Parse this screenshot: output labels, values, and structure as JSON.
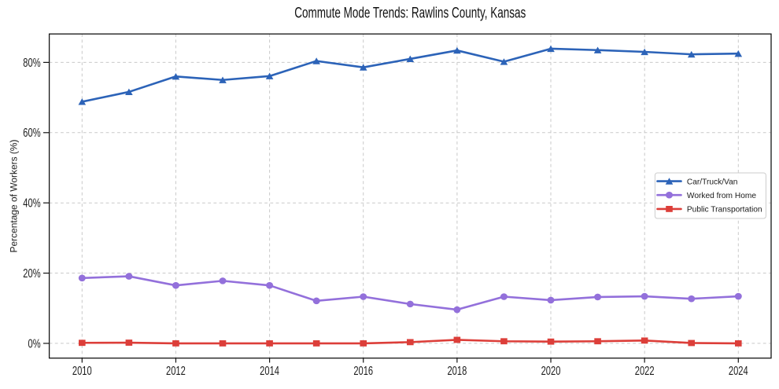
{
  "chart_data": {
    "type": "line",
    "title": "Commute Mode Trends: Rawlins County, Kansas",
    "ylabel": "Percentage of Workers (%)",
    "xlabel": "",
    "x": [
      2010,
      2011,
      2012,
      2013,
      2014,
      2015,
      2016,
      2017,
      2018,
      2019,
      2020,
      2021,
      2022,
      2023,
      2024
    ],
    "series": [
      {
        "name": "Car/Truck/Van",
        "color": "#2c63b8",
        "marker": "triangle",
        "values": [
          68.8,
          71.6,
          76.0,
          75.0,
          76.1,
          80.4,
          78.6,
          81.0,
          83.4,
          80.2,
          83.9,
          83.5,
          83.0,
          82.3,
          82.5
        ]
      },
      {
        "name": "Worked from Home",
        "color": "#9370db",
        "marker": "circle",
        "values": [
          18.6,
          19.1,
          16.5,
          17.8,
          16.5,
          12.1,
          13.3,
          11.2,
          9.6,
          13.3,
          12.3,
          13.2,
          13.4,
          12.7,
          13.4
        ]
      },
      {
        "name": "Public Transportation",
        "color": "#dc3e39",
        "marker": "square",
        "values": [
          0.15,
          0.2,
          0.0,
          0.0,
          0.0,
          0.0,
          0.0,
          0.35,
          1.0,
          0.6,
          0.5,
          0.6,
          0.8,
          0.1,
          0.0
        ]
      }
    ],
    "xticks": {
      "values": [
        2010,
        2012,
        2014,
        2016,
        2018,
        2020,
        2022,
        2024
      ],
      "labels": [
        "2010",
        "2012",
        "2014",
        "2016",
        "2018",
        "2020",
        "2022",
        "2024"
      ]
    },
    "yticks": {
      "values": [
        0,
        20,
        40,
        60,
        80
      ],
      "labels": [
        "0%",
        "20%",
        "40%",
        "60%",
        "80%"
      ]
    },
    "xlim": [
      2009.3,
      2024.7
    ],
    "ylim": [
      -4.2,
      88.1
    ],
    "grid": true,
    "grid_style": "dashed",
    "legend_position": "center right",
    "legend_labels": [
      "Car/Truck/Van",
      "Worked from Home",
      "Public Transportation"
    ],
    "colors": {
      "background": "#ffffff",
      "grid": "#c9c9c9",
      "spine": "#141414",
      "tick_text": "#1c1c1c",
      "title_text": "#111111",
      "legend_border": "#cccccc",
      "legend_fill": "#ffffff"
    }
  }
}
